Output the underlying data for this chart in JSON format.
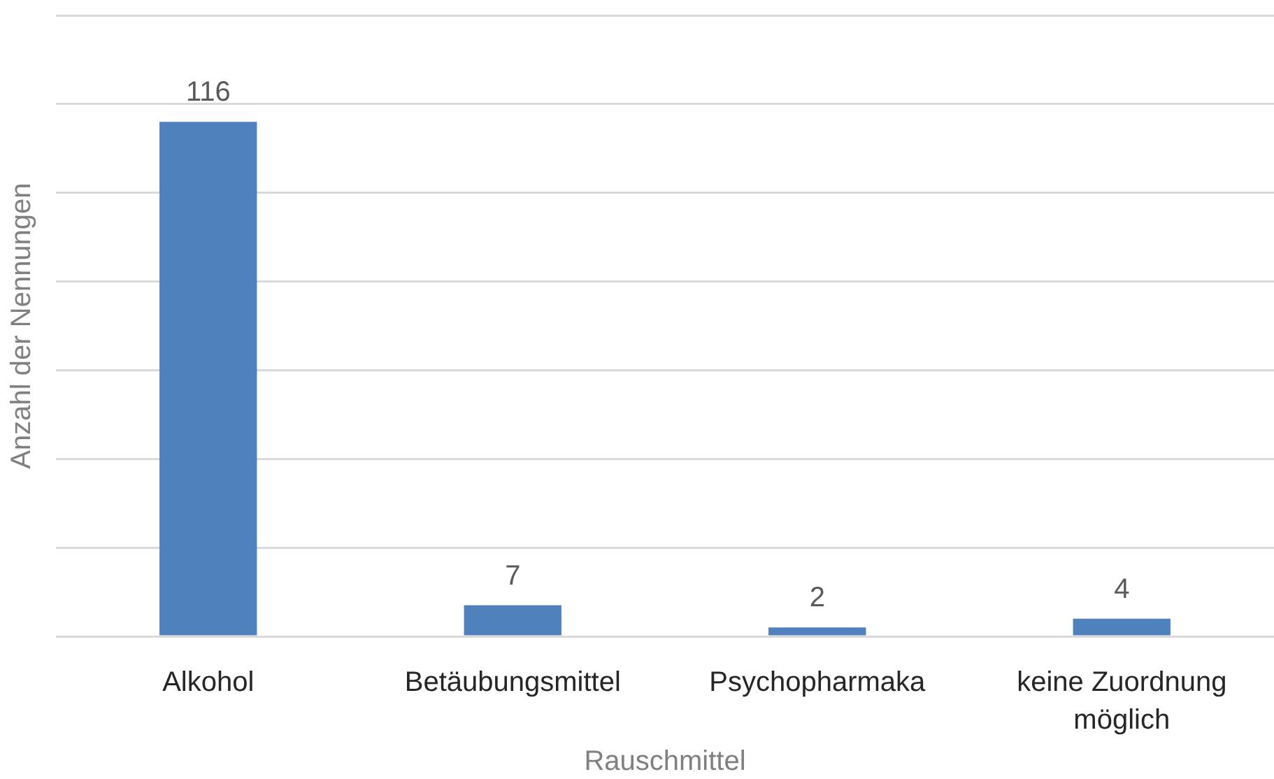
{
  "chart_data": {
    "type": "bar",
    "categories": [
      "Alkohol",
      "Betäubungsmittel",
      "Psychopharmaka",
      "keine Zuordnung möglich"
    ],
    "values": [
      116,
      7,
      2,
      4
    ],
    "color": "#4f81bd",
    "data_labels": true,
    "xlabel": "Rauschmittel",
    "ylabel": "Anzahl der Nennungen",
    "ylim": [
      0,
      140
    ],
    "yticks": [
      {
        "value": 0,
        "label": null
      },
      {
        "value": 20,
        "label": null
      },
      {
        "value": 40,
        "label": null
      },
      {
        "value": 60,
        "label": null
      },
      {
        "value": 80,
        "label": null
      },
      {
        "value": 100,
        "label": null
      },
      {
        "value": 120,
        "label": null
      },
      {
        "value": 140,
        "label": null
      }
    ],
    "grid": "y",
    "tick_labels": "x"
  }
}
